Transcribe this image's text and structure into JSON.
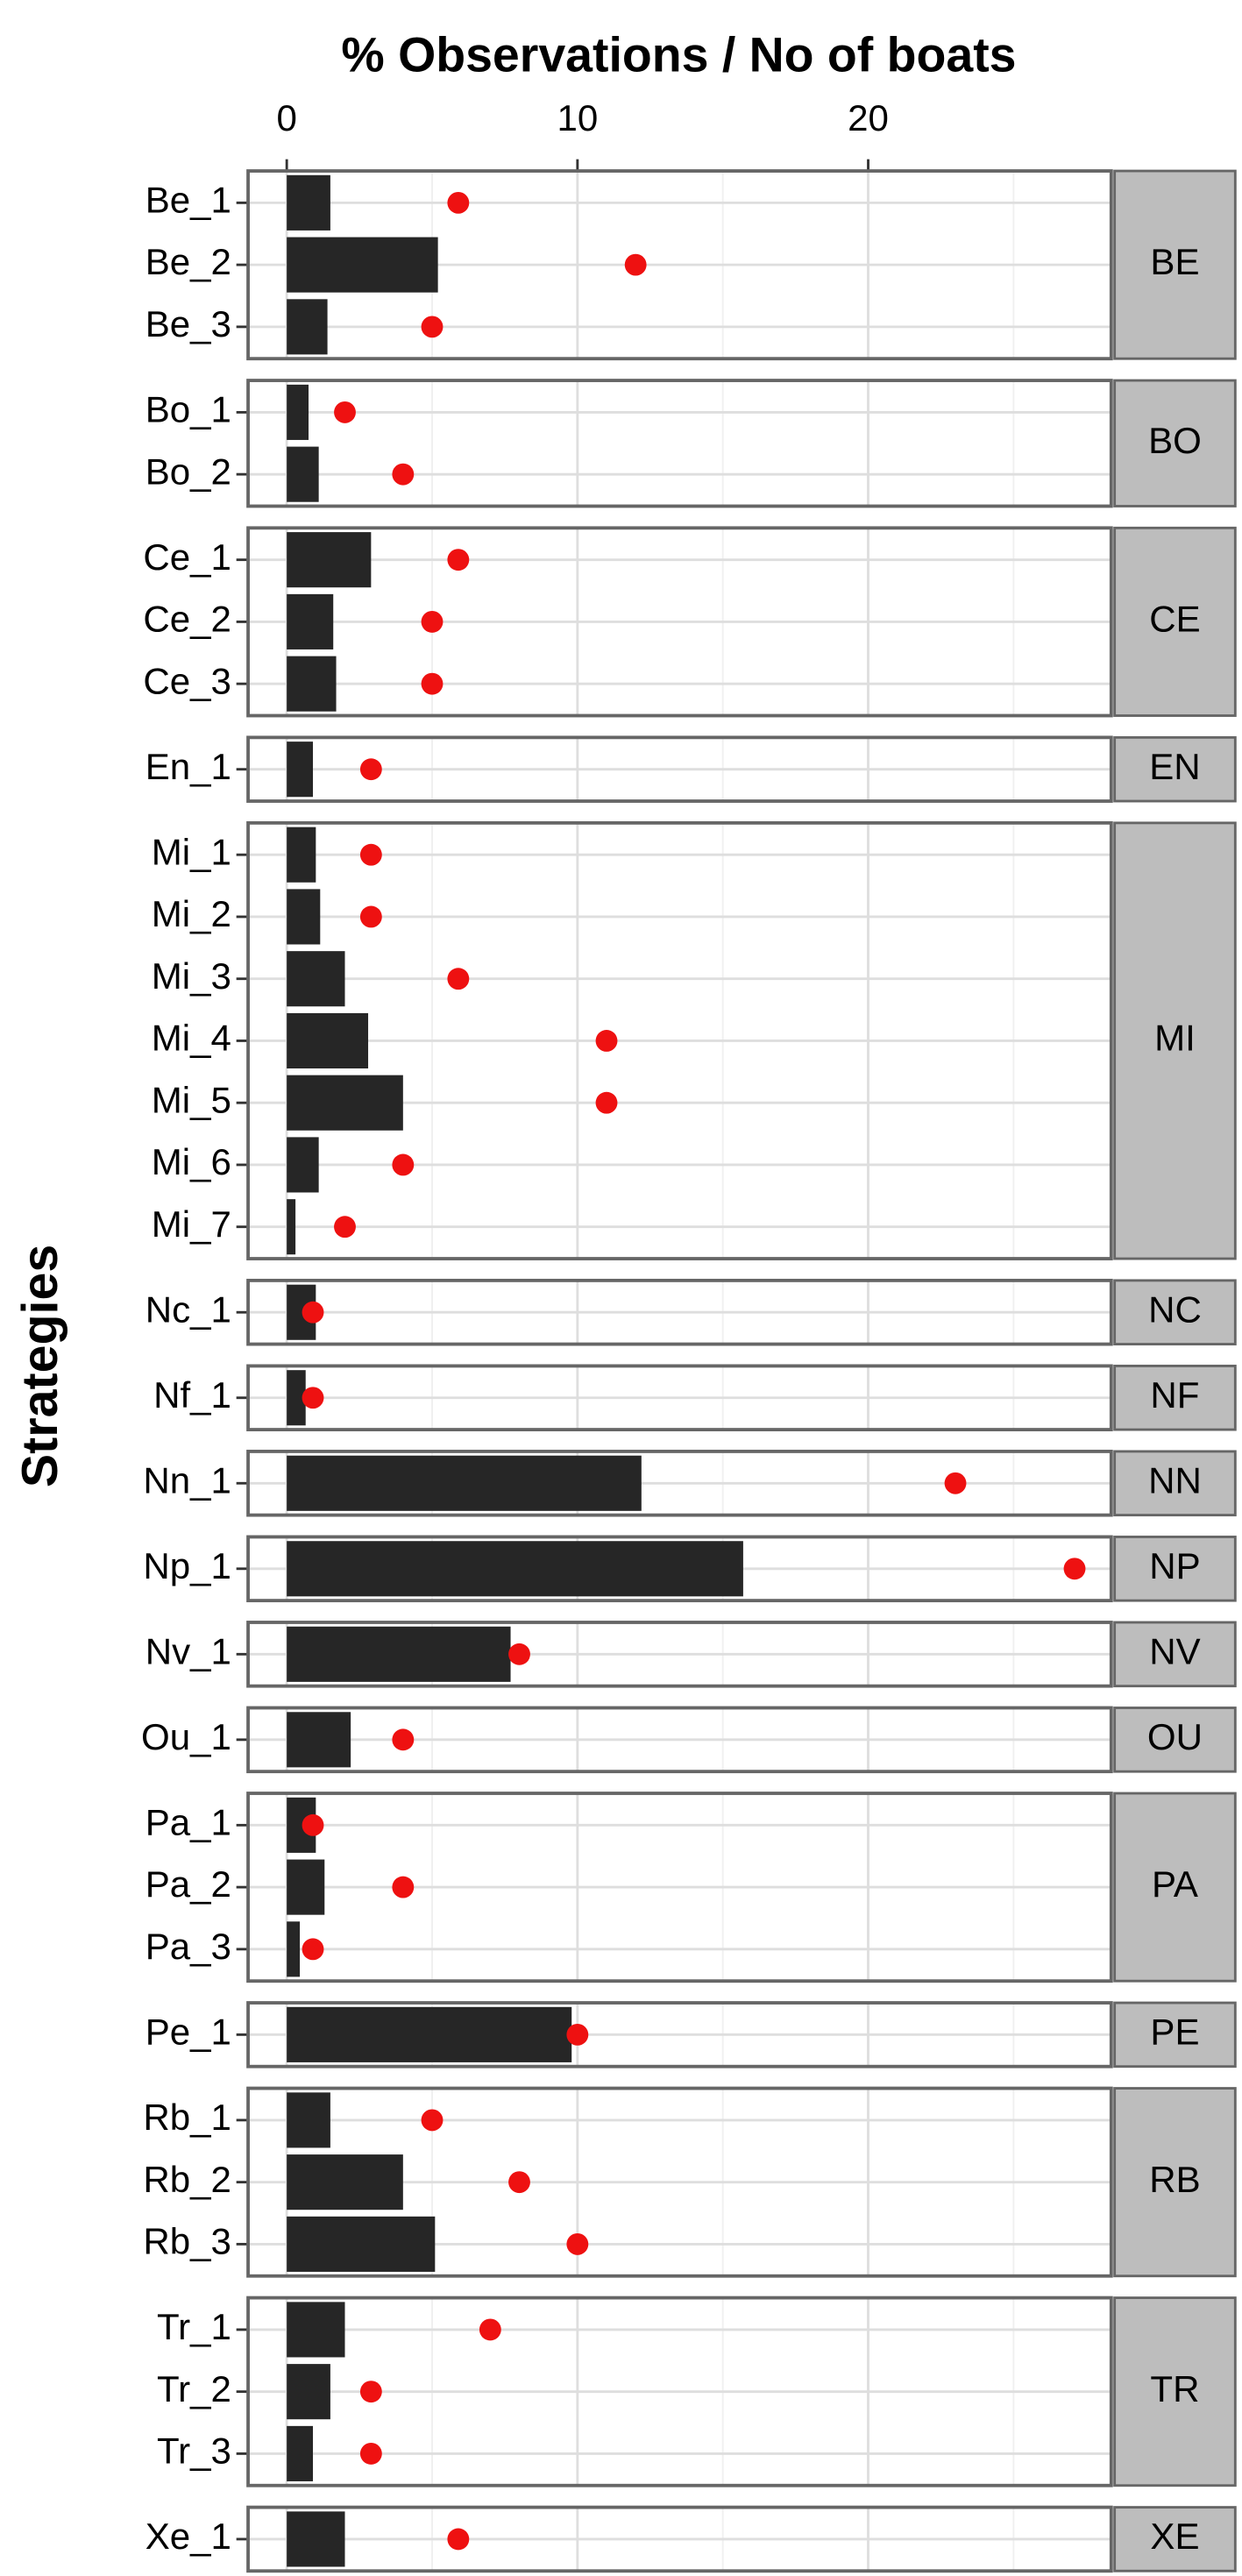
{
  "chart_data": {
    "type": "bar",
    "title": "% Observations / No of boats",
    "y_label": "Strategies",
    "xlim": [
      -1.33,
      28.36
    ],
    "xticks": [
      0,
      10,
      20
    ],
    "xminor": [
      5,
      15,
      25
    ],
    "grid": true,
    "bar_color": "#262626",
    "point_color": "#ee1111",
    "strip_color": "#bdbdbd",
    "panels": [
      {
        "label": "BE",
        "categories": [
          "Be_1",
          "Be_2",
          "Be_3"
        ],
        "bar_values": [
          1.5,
          5.2,
          1.4
        ],
        "point_values": [
          5.9,
          12.0,
          5.0
        ]
      },
      {
        "label": "BO",
        "categories": [
          "Bo_1",
          "Bo_2"
        ],
        "bar_values": [
          0.75,
          1.1
        ],
        "point_values": [
          2.0,
          4.0
        ]
      },
      {
        "label": "CE",
        "categories": [
          "Ce_1",
          "Ce_2",
          "Ce_3"
        ],
        "bar_values": [
          2.9,
          1.6,
          1.7
        ],
        "point_values": [
          5.9,
          5.0,
          5.0
        ]
      },
      {
        "label": "EN",
        "categories": [
          "En_1"
        ],
        "bar_values": [
          0.9
        ],
        "point_values": [
          2.9
        ]
      },
      {
        "label": "MI",
        "categories": [
          "Mi_1",
          "Mi_2",
          "Mi_3",
          "Mi_4",
          "Mi_5",
          "Mi_6",
          "Mi_7"
        ],
        "bar_values": [
          1.0,
          1.15,
          2.0,
          2.8,
          4.0,
          1.1,
          0.3
        ],
        "point_values": [
          2.9,
          2.9,
          5.9,
          11.0,
          11.0,
          4.0,
          2.0
        ]
      },
      {
        "label": "NC",
        "categories": [
          "Nc_1"
        ],
        "bar_values": [
          1.0
        ],
        "point_values": [
          0.9
        ]
      },
      {
        "label": "NF",
        "categories": [
          "Nf_1"
        ],
        "bar_values": [
          0.65
        ],
        "point_values": [
          0.9
        ]
      },
      {
        "label": "NN",
        "categories": [
          "Nn_1"
        ],
        "bar_values": [
          12.2
        ],
        "point_values": [
          23.0
        ]
      },
      {
        "label": "NP",
        "categories": [
          "Np_1"
        ],
        "bar_values": [
          15.7
        ],
        "point_values": [
          27.1
        ]
      },
      {
        "label": "NV",
        "categories": [
          "Nv_1"
        ],
        "bar_values": [
          7.7
        ],
        "point_values": [
          8.0
        ]
      },
      {
        "label": "OU",
        "categories": [
          "Ou_1"
        ],
        "bar_values": [
          2.2
        ],
        "point_values": [
          4.0
        ]
      },
      {
        "label": "PA",
        "categories": [
          "Pa_1",
          "Pa_2",
          "Pa_3"
        ],
        "bar_values": [
          1.0,
          1.3,
          0.45
        ],
        "point_values": [
          0.9,
          4.0,
          0.9
        ]
      },
      {
        "label": "PE",
        "categories": [
          "Pe_1"
        ],
        "bar_values": [
          9.8
        ],
        "point_values": [
          10.0
        ]
      },
      {
        "label": "RB",
        "categories": [
          "Rb_1",
          "Rb_2",
          "Rb_3"
        ],
        "bar_values": [
          1.5,
          4.0,
          5.1
        ],
        "point_values": [
          5.0,
          8.0,
          10.0
        ]
      },
      {
        "label": "TR",
        "categories": [
          "Tr_1",
          "Tr_2",
          "Tr_3"
        ],
        "bar_values": [
          2.0,
          1.5,
          0.9
        ],
        "point_values": [
          7.0,
          2.9,
          2.9
        ]
      },
      {
        "label": "XE",
        "categories": [
          "Xe_1"
        ],
        "bar_values": [
          2.0
        ],
        "point_values": [
          5.9
        ]
      }
    ]
  }
}
